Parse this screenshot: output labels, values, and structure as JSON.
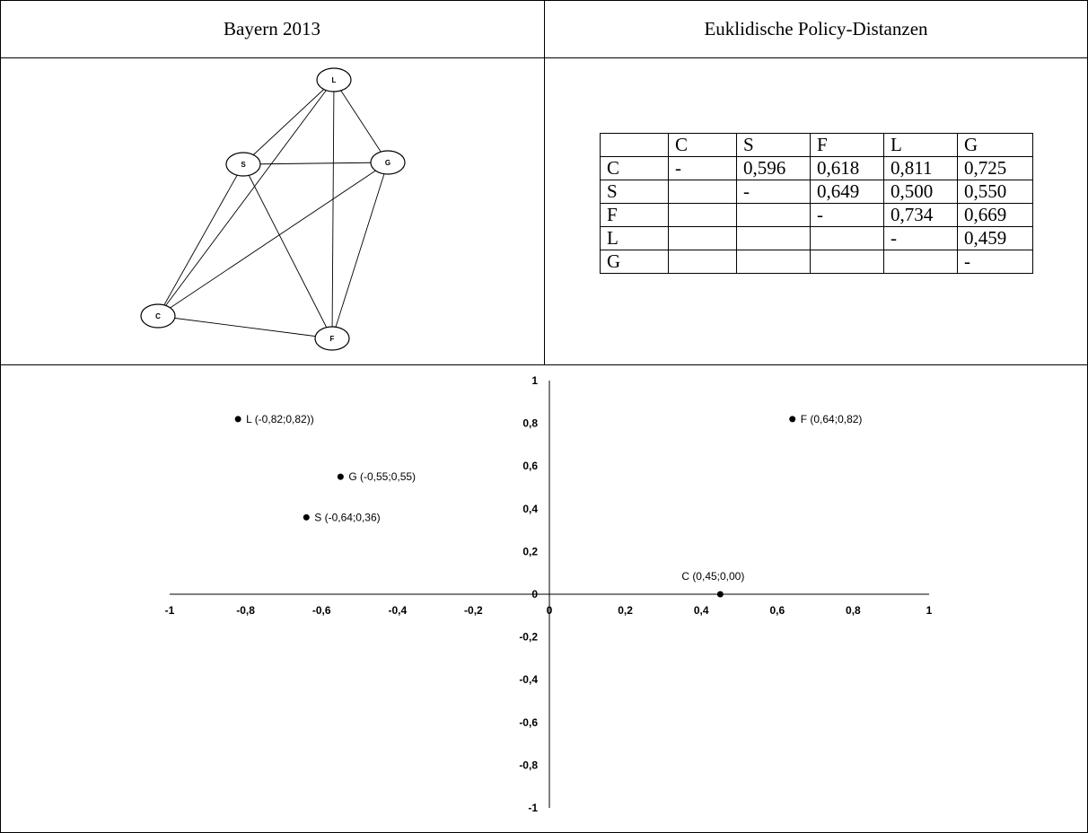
{
  "header": {
    "left_title": "Bayern 2013",
    "right_title": "Euklidische Policy-Distanzen"
  },
  "network": {
    "nodes": [
      {
        "id": "L",
        "label": "L"
      },
      {
        "id": "S",
        "label": "S"
      },
      {
        "id": "G",
        "label": "G"
      },
      {
        "id": "C",
        "label": "C"
      },
      {
        "id": "F",
        "label": "F"
      }
    ],
    "edges": [
      [
        "L",
        "S"
      ],
      [
        "L",
        "G"
      ],
      [
        "L",
        "C"
      ],
      [
        "L",
        "F"
      ],
      [
        "S",
        "G"
      ],
      [
        "S",
        "C"
      ],
      [
        "S",
        "F"
      ],
      [
        "G",
        "C"
      ],
      [
        "G",
        "F"
      ],
      [
        "C",
        "F"
      ]
    ]
  },
  "distance_table": {
    "columns": [
      "",
      "C",
      "S",
      "F",
      "L",
      "G"
    ],
    "rows": [
      [
        "C",
        "-",
        "0,596",
        "0,618",
        "0,811",
        "0,725"
      ],
      [
        "S",
        "",
        "-",
        "0,649",
        "0,500",
        "0,550"
      ],
      [
        "F",
        "",
        "",
        "-",
        "0,734",
        "0,669"
      ],
      [
        "L",
        "",
        "",
        "",
        "-",
        "0,459"
      ],
      [
        "G",
        "",
        "",
        "",
        "",
        "-"
      ]
    ]
  },
  "chart_data": {
    "type": "scatter",
    "xlim": [
      -1,
      1
    ],
    "ylim": [
      -1,
      1
    ],
    "x_ticks": [
      "-1",
      "-0,8",
      "-0,6",
      "-0,4",
      "-0,2",
      "0",
      "0,2",
      "0,4",
      "0,6",
      "0,8",
      "1"
    ],
    "y_ticks": [
      "1",
      "0,8",
      "0,6",
      "0,4",
      "0,2",
      "0",
      "-0,2",
      "-0,4",
      "-0,6",
      "-0,8",
      "-1"
    ],
    "grid": false,
    "points": [
      {
        "x": -0.82,
        "y": 0.82,
        "label": "L (-0,82;0,82))",
        "label_side": "right"
      },
      {
        "x": -0.55,
        "y": 0.55,
        "label": "G (-0,55;0,55)",
        "label_side": "right"
      },
      {
        "x": -0.64,
        "y": 0.36,
        "label": "S (-0,64;0,36)",
        "label_side": "right"
      },
      {
        "x": 0.64,
        "y": 0.82,
        "label": "F (0,64;0,82)",
        "label_side": "right"
      },
      {
        "x": 0.45,
        "y": 0.0,
        "label": "C (0,45;0,00)",
        "label_side": "above"
      }
    ]
  }
}
